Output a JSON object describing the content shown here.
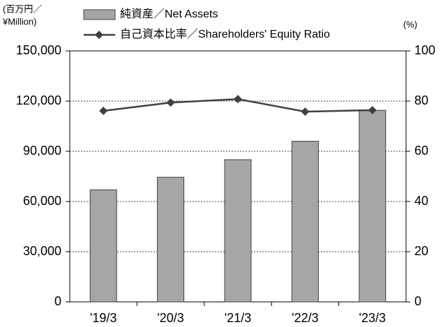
{
  "chart_data": {
    "type": "bar-line",
    "y_label_lines": [
      "(百万円／",
      "¥Million)"
    ],
    "y2_label": "(%)",
    "categories": [
      "'19/3",
      "'20/3",
      "'21/3",
      "'22/3",
      "'23/3"
    ],
    "series": [
      {
        "name": "純資産／Net Assets",
        "type": "bar",
        "color": "#a6a6a6",
        "values": [
          67000,
          74500,
          85000,
          96000,
          114500
        ]
      },
      {
        "name": "自己資本比率／Shareholders' Equity Ratio",
        "type": "line",
        "color": "#404040",
        "axis": "y2",
        "values": [
          76.1,
          79.4,
          80.8,
          75.8,
          76.4
        ]
      }
    ],
    "ylim": [
      0,
      150000
    ],
    "yticks": [
      0,
      {
        "value": 30000,
        "label": "30,000"
      },
      {
        "value": 60000,
        "label": "60,000"
      },
      {
        "value": 90000,
        "label": "90,000"
      },
      {
        "value": 120000,
        "label": "120,000"
      },
      {
        "value": 150000,
        "label": "150,000"
      }
    ],
    "y2lim": [
      0,
      100
    ],
    "y2ticks": [
      0,
      20,
      40,
      60,
      80,
      100
    ],
    "grid": true
  }
}
